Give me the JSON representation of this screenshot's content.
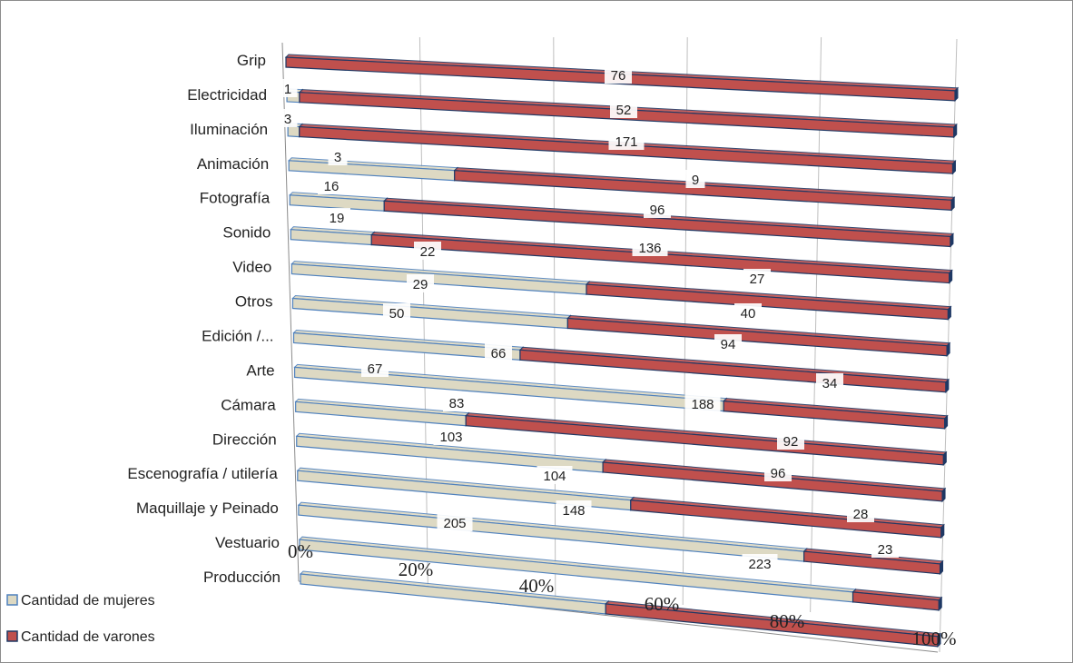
{
  "chart_data": {
    "type": "bar",
    "stacked": "percent",
    "orientation": "horizontal",
    "style": "3d",
    "categories": [
      "Grip",
      "Electricidad",
      "Iluminación",
      "Animación",
      "Fotografía",
      "Sonido",
      "Video",
      "Otros",
      "Edición /...",
      "Arte",
      "Cámara",
      "Dirección",
      "Escenografía / utilería",
      "Maquillaje y Peinado",
      "Vestuario",
      "Producción"
    ],
    "series": [
      {
        "name": "Cantidad de mujeres",
        "color": "#ddd9c3",
        "edge": "#4f81bd",
        "values": [
          0,
          1,
          3,
          3,
          16,
          19,
          22,
          29,
          50,
          66,
          67,
          83,
          103,
          104,
          148,
          205
        ],
        "labels": [
          "",
          "1",
          "3",
          "3",
          "16",
          "19",
          "22",
          "29",
          "50",
          "66",
          "67",
          "83",
          "103",
          "104",
          "148",
          "205"
        ]
      },
      {
        "name": "Cantidad de varones",
        "color": "#c0504d",
        "edge": "#1f3864",
        "values": [
          76,
          52,
          171,
          9,
          96,
          136,
          27,
          40,
          94,
          34,
          188,
          92,
          96,
          28,
          23,
          223
        ],
        "labels": [
          "76",
          "52",
          "171",
          "9",
          "96",
          "136",
          "27",
          "40",
          "94",
          "34",
          "188",
          "92",
          "96",
          "28",
          "23",
          "223"
        ]
      }
    ],
    "ticks": [
      "0%",
      "20%",
      "40%",
      "60%",
      "80%",
      "100%"
    ],
    "xlim": [
      0,
      100
    ],
    "grid": true,
    "legend": "bottom-left"
  }
}
